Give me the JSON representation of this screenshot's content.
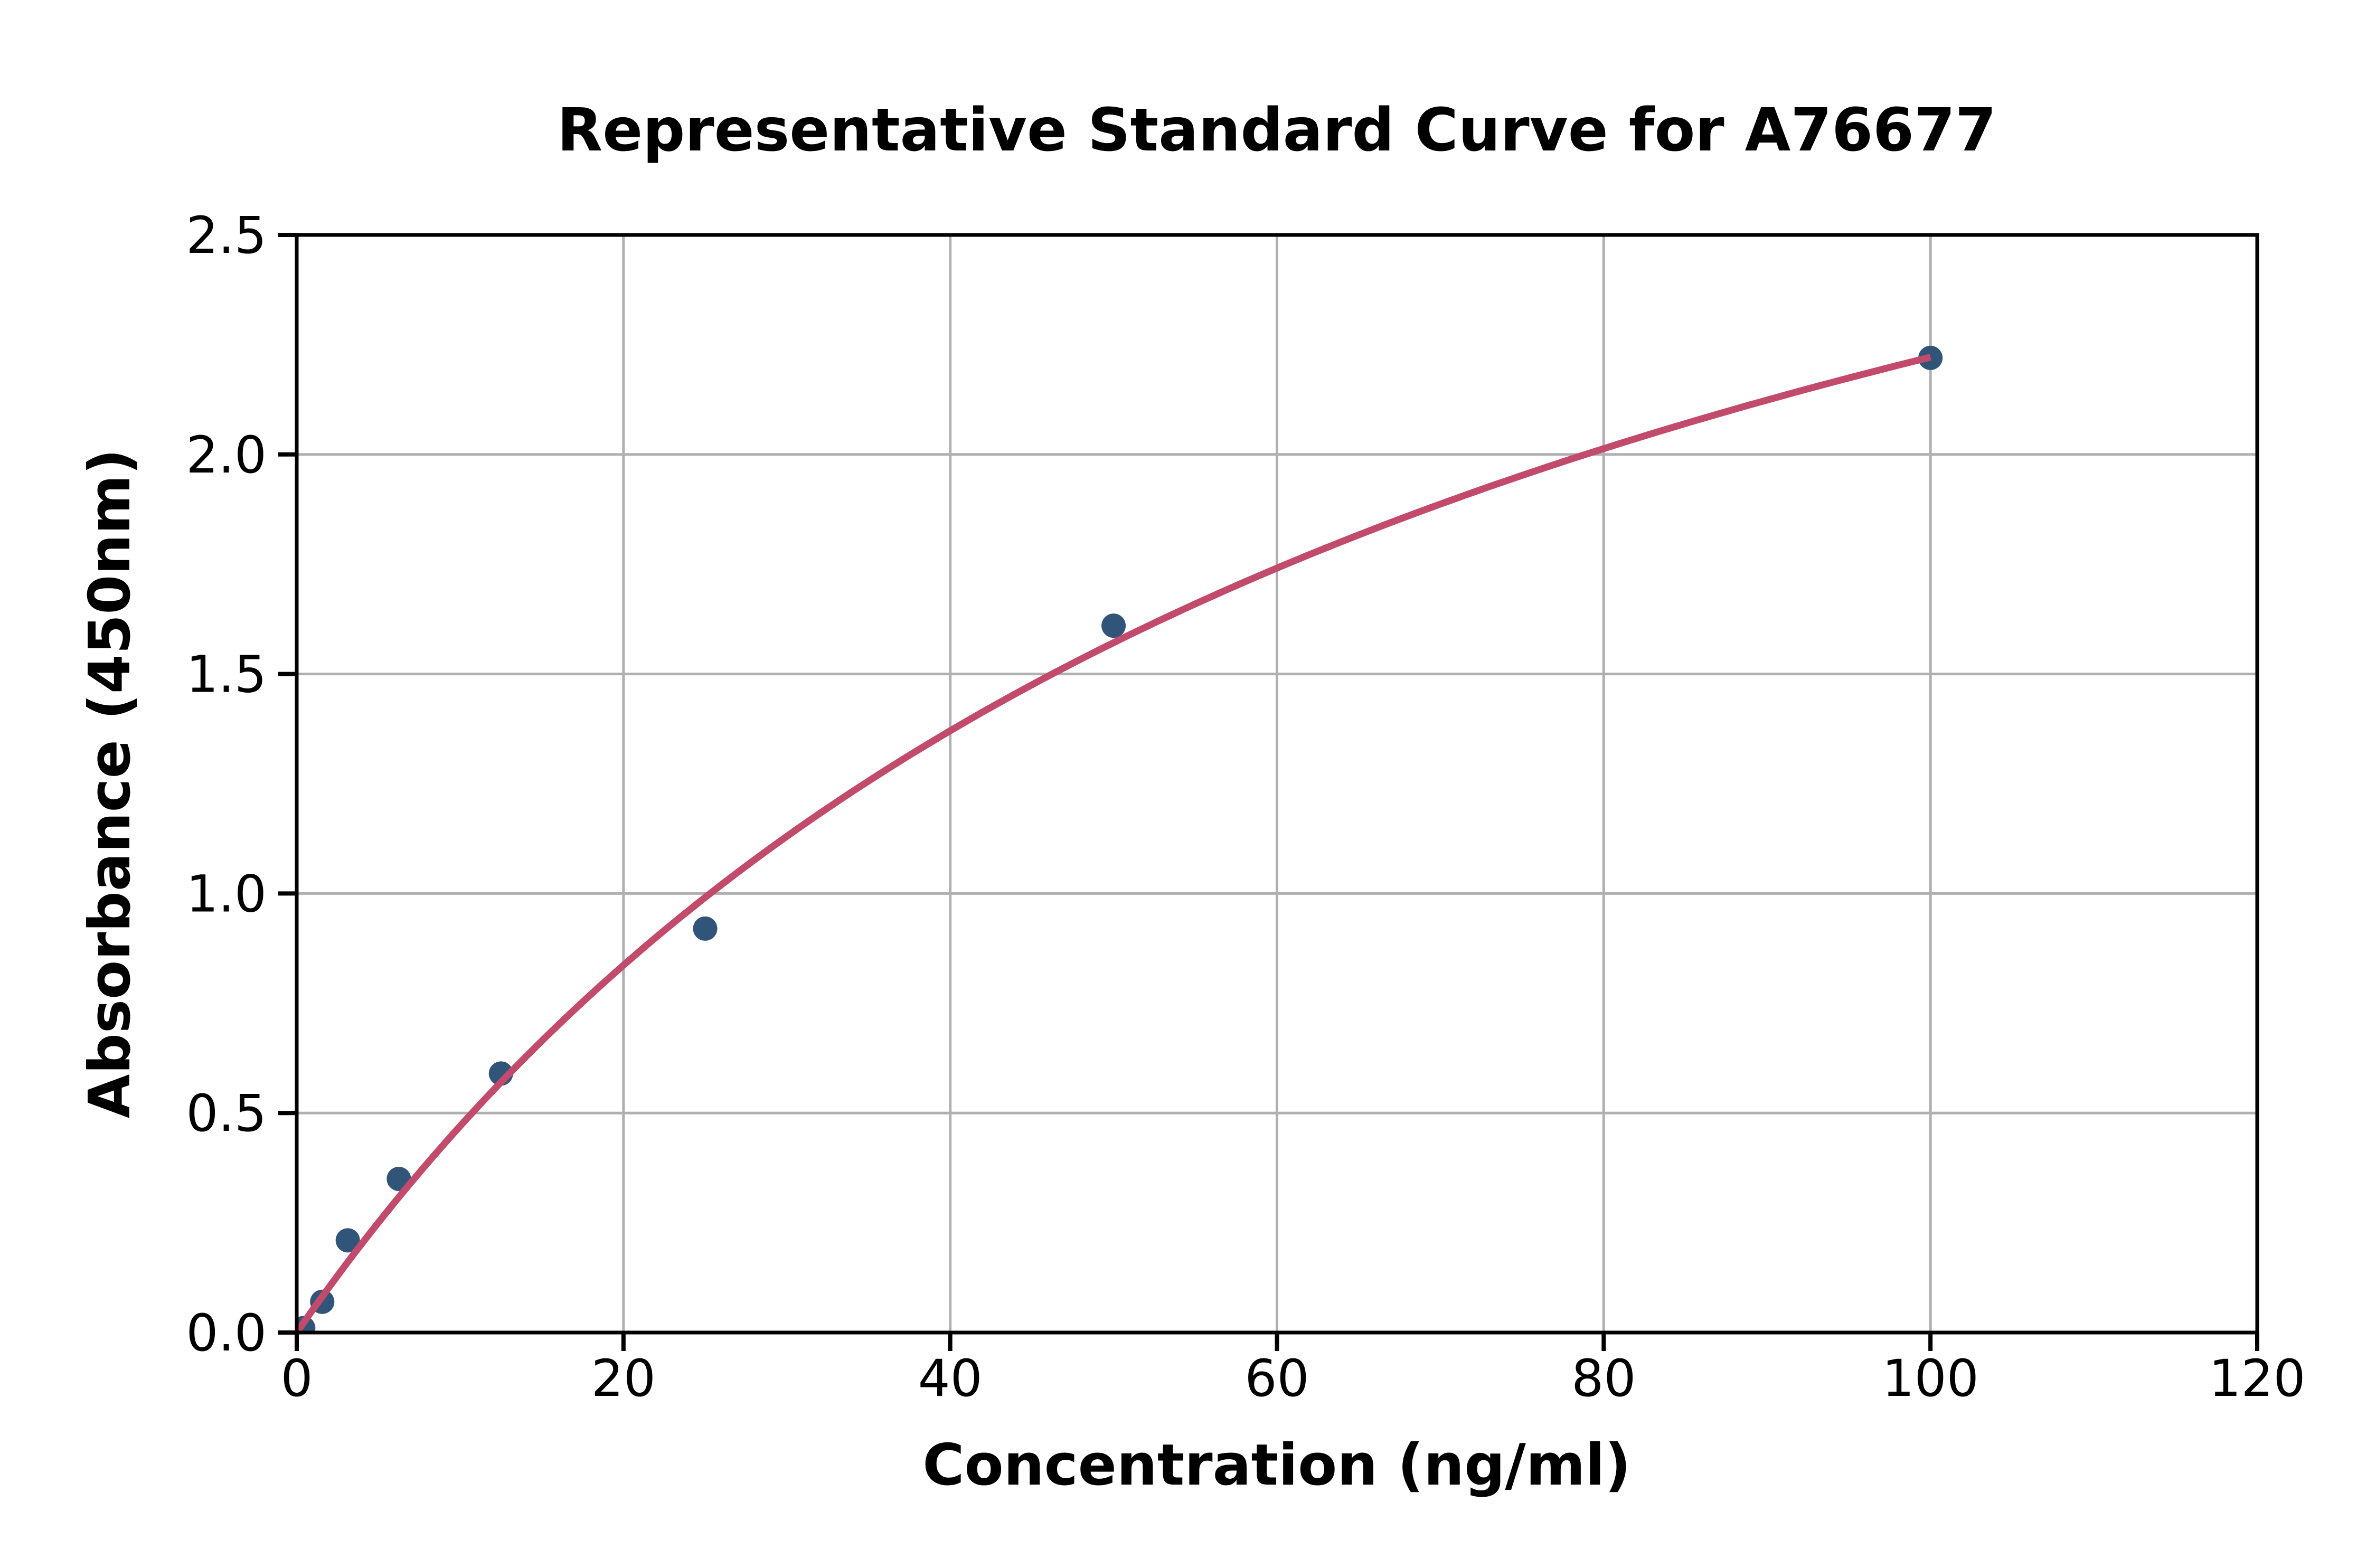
{
  "chart_data": {
    "type": "scatter",
    "title": "Representative Standard Curve for A76677",
    "xlabel": "Concentration (ng/ml)",
    "ylabel": "Absorbance (450nm)",
    "xlim": [
      0,
      120
    ],
    "ylim": [
      0,
      2.5
    ],
    "grid": true,
    "legend": "none",
    "x_ticks": [
      {
        "value": 0,
        "label": "0"
      },
      {
        "value": 20,
        "label": "20"
      },
      {
        "value": 40,
        "label": "40"
      },
      {
        "value": 60,
        "label": "60"
      },
      {
        "value": 80,
        "label": "80"
      },
      {
        "value": 100,
        "label": "100"
      },
      {
        "value": 120,
        "label": "120"
      }
    ],
    "y_ticks": [
      {
        "value": 0.0,
        "label": "0.0"
      },
      {
        "value": 0.5,
        "label": "0.5"
      },
      {
        "value": 1.0,
        "label": "1.0"
      },
      {
        "value": 1.5,
        "label": "1.5"
      },
      {
        "value": 2.0,
        "label": "2.0"
      },
      {
        "value": 2.5,
        "label": "2.5"
      }
    ],
    "points": [
      {
        "x": 0.4,
        "y": 0.01
      },
      {
        "x": 1.56,
        "y": 0.07
      },
      {
        "x": 3.125,
        "y": 0.21
      },
      {
        "x": 6.25,
        "y": 0.35
      },
      {
        "x": 12.5,
        "y": 0.59
      },
      {
        "x": 25,
        "y": 0.92
      },
      {
        "x": 50,
        "y": 1.61
      },
      {
        "x": 100,
        "y": 2.22
      }
    ],
    "curve_fit": {
      "model": "saturation",
      "formula": "y = a*x / (b + x)",
      "a": 3.79,
      "b": 70.6,
      "x_range": [
        0,
        100
      ]
    },
    "colors": {
      "marker": "#305578",
      "line": "#C24A6B",
      "grid": "#B0B0B0",
      "axis": "#000000",
      "background": "#FFFFFF"
    }
  }
}
